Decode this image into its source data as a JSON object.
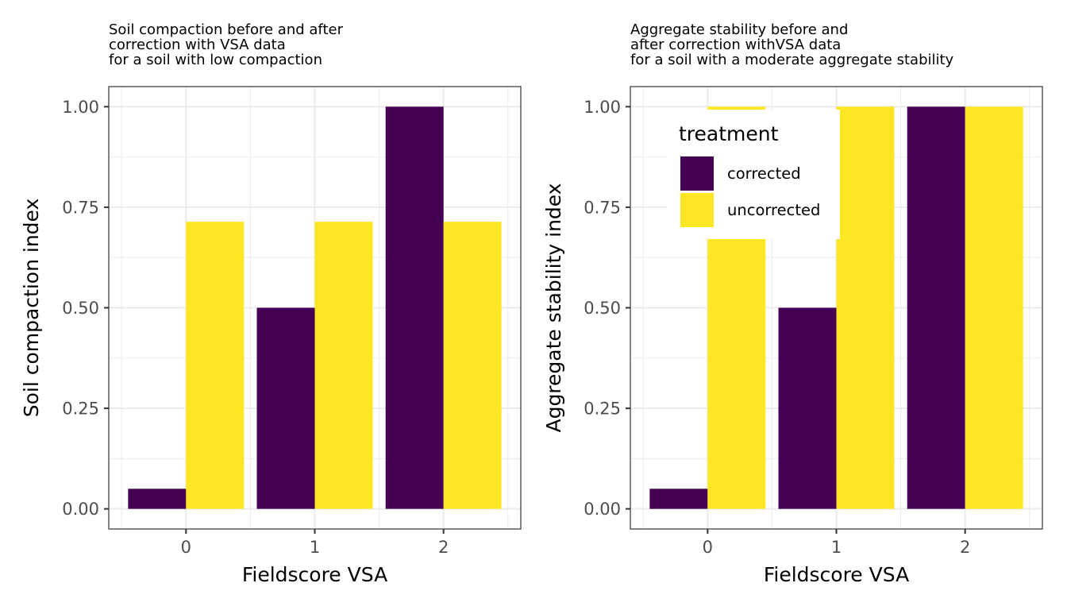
{
  "chart_data": [
    {
      "type": "bar",
      "title": [
        "Soil compaction before and after",
        "correction with VSA data",
        "for a soil with low compaction"
      ],
      "xlabel": "Fieldscore VSA",
      "ylabel": "Soil compaction index",
      "categories": [
        "0",
        "1",
        "2"
      ],
      "ylim": [
        -0.05,
        1.05
      ],
      "yticks": [
        "0.00",
        "0.25",
        "0.50",
        "0.75",
        "1.00"
      ],
      "ytick_values": [
        0,
        0.25,
        0.5,
        0.75,
        1.0
      ],
      "grid": true,
      "series": [
        {
          "name": "corrected",
          "values": [
            0.05,
            0.5,
            1.0
          ]
        },
        {
          "name": "uncorrected",
          "values": [
            0.714,
            0.714,
            0.714
          ]
        }
      ],
      "legend": null
    },
    {
      "type": "bar",
      "title": [
        "Aggregate stability before and",
        "after correction withVSA data",
        "for a soil with a moderate aggregate stability"
      ],
      "xlabel": "Fieldscore VSA",
      "ylabel": "Aggregate stability index",
      "categories": [
        "0",
        "1",
        "2"
      ],
      "ylim": [
        -0.05,
        1.05
      ],
      "yticks": [
        "0.00",
        "0.25",
        "0.50",
        "0.75",
        "1.00"
      ],
      "ytick_values": [
        0,
        0.25,
        0.5,
        0.75,
        1.0
      ],
      "grid": true,
      "series": [
        {
          "name": "corrected",
          "values": [
            0.05,
            0.5,
            1.0
          ]
        },
        {
          "name": "uncorrected",
          "values": [
            1.0,
            1.0,
            1.0
          ]
        }
      ],
      "legend": {
        "title": "treatment",
        "placement": "top-left-inside",
        "entries": [
          "corrected",
          "uncorrected"
        ]
      }
    }
  ],
  "colors": {
    "corrected": "#440154",
    "uncorrected": "#FDE725",
    "grid": "#ebebeb",
    "border": "#333333",
    "tick_text": "#4d4d4d"
  }
}
